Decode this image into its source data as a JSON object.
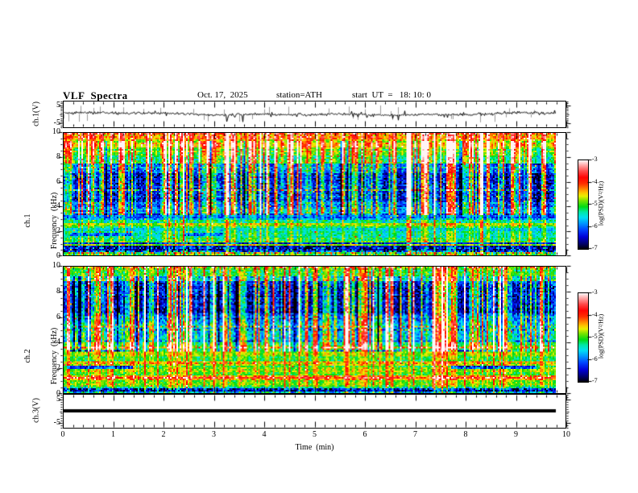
{
  "figure": {
    "title": "VLF  Spectra",
    "date": "Oct. 17,  2025",
    "station": "station=ATH",
    "start_ut": "start  UT  =   18: 10: 0"
  },
  "axes": {
    "x_label": "Time  (min)",
    "x_tick_labels": [
      "0",
      "1",
      "2",
      "3",
      "4",
      "5",
      "6",
      "7",
      "8",
      "9",
      "10"
    ],
    "x_range": [
      0,
      10
    ],
    "x_minor_step": 0.2,
    "freq_tick_labels": [
      "10",
      "8",
      "6",
      "4",
      "2",
      "0"
    ],
    "volt_tick_labels": [
      "5",
      "-5"
    ],
    "grid": false
  },
  "labels": {
    "ch1_volt": "ch.1(V)",
    "ch1_spec_line1": "ch.1",
    "ch1_spec_line2": "Frequency  (kHz)",
    "ch2_spec_line1": "ch.2",
    "ch2_spec_line2": "Frequency  (kHz)",
    "ch3_volt": "ch.3(V)"
  },
  "colorbar": {
    "tick_labels": [
      "-3",
      "-4",
      "-5",
      "-6",
      "-7"
    ],
    "label": "log(PSD)(V²/Hz)",
    "range": [
      -7,
      -3
    ]
  },
  "colormap": [
    [
      0.0,
      "#000000"
    ],
    [
      0.06,
      "#000066"
    ],
    [
      0.14,
      "#0000d8"
    ],
    [
      0.22,
      "#0044ff"
    ],
    [
      0.3,
      "#00a0ff"
    ],
    [
      0.36,
      "#00e0f4"
    ],
    [
      0.42,
      "#00e8a8"
    ],
    [
      0.48,
      "#00dc14"
    ],
    [
      0.55,
      "#7ce400"
    ],
    [
      0.6,
      "#e8f000"
    ],
    [
      0.64,
      "#ffc400"
    ],
    [
      0.69,
      "#ff7800"
    ],
    [
      0.74,
      "#ff3000"
    ],
    [
      0.81,
      "#ff0404"
    ],
    [
      0.88,
      "#ff4848"
    ],
    [
      0.94,
      "#ff9c9c"
    ],
    [
      1.0,
      "#fff4f4"
    ]
  ],
  "chart_data": [
    {
      "type": "line",
      "name": "ch.1 voltage waveform",
      "panel": "wave1",
      "ylabel": "ch.1(V)",
      "ylim": [
        -7.5,
        7.5
      ],
      "yticks": [
        5,
        -5
      ],
      "x_start": 0,
      "x_end": 9.8,
      "xlabel": "Time (min)",
      "seed": 41,
      "baseline": 0.2,
      "noise": 0.55,
      "spike_rate": 0.05,
      "spike_amp": 4.2,
      "gray_spike_count": 38,
      "color": "#000000",
      "gray_color": "#9a9a9a"
    },
    {
      "type": "heatmap",
      "name": "ch.1 spectrogram",
      "panel": "spec1",
      "ylabel": "ch.1 Frequency (kHz)",
      "ylim": [
        0,
        10
      ],
      "zlim": [
        -7,
        -3
      ],
      "x_start": 0,
      "x_end": 9.8,
      "seed": 12,
      "bands": [
        [
          9.88,
          10.0,
          -4.05,
          0.45
        ],
        [
          9.55,
          9.88,
          -4.35,
          0.3
        ],
        [
          8.85,
          9.55,
          -4.6,
          0.25
        ],
        [
          8.15,
          8.85,
          -4.95,
          0.3
        ],
        [
          7.45,
          8.15,
          -5.35,
          0.4
        ],
        [
          6.75,
          7.45,
          -5.95,
          0.5
        ],
        [
          4.3,
          6.75,
          -6.35,
          0.5
        ],
        [
          3.85,
          4.3,
          -5.95,
          0.45
        ],
        [
          3.45,
          3.85,
          -5.65,
          0.4
        ],
        [
          3.22,
          3.45,
          -6.25,
          0.4
        ],
        [
          2.88,
          3.22,
          -6.0,
          0.45
        ],
        [
          2.58,
          2.88,
          -5.35,
          0.35
        ],
        [
          2.4,
          2.58,
          -4.8,
          0.3
        ],
        [
          1.5,
          2.4,
          -5.45,
          0.3
        ],
        [
          0.85,
          1.5,
          -5.15,
          0.3
        ],
        [
          0.32,
          0.85,
          -6.45,
          0.85
        ],
        [
          0.0,
          0.32,
          -5.35,
          0.45
        ]
      ],
      "hlines": [
        [
          5.32,
          0.07,
          -5.7,
          1.1
        ],
        [
          4.62,
          0.05,
          -6.55,
          0.5
        ],
        [
          3.3,
          0.05,
          -6.6,
          0.4
        ],
        [
          2.78,
          0.04,
          -6.55,
          0.4
        ],
        [
          2.66,
          0.03,
          -6.3,
          0.4
        ],
        [
          1.35,
          0.03,
          -5.9,
          0.4
        ],
        [
          1.02,
          0.04,
          -6.5,
          0.5
        ],
        [
          0.7,
          0.07,
          -6.9,
          0.5
        ],
        [
          0.48,
          0.06,
          -6.8,
          0.5
        ],
        [
          0.15,
          0.06,
          -4.9,
          0.9
        ]
      ],
      "patches": [
        [
          0.1,
          1.35,
          1.62,
          1.78,
          -6.2,
          0.4
        ],
        [
          2.4,
          3.15,
          1.62,
          1.78,
          -6.2,
          0.4
        ],
        [
          0.15,
          1.4,
          3.52,
          3.68,
          -6.1,
          0.4
        ]
      ],
      "streaks": {
        "count": 240,
        "dark": 22,
        "min_strength": 0.3,
        "max_extra": 2.1
      }
    },
    {
      "type": "heatmap",
      "name": "ch.2 spectrogram",
      "panel": "spec2",
      "ylabel": "ch.2 Frequency (kHz)",
      "ylim": [
        0,
        10
      ],
      "zlim": [
        -7,
        -3
      ],
      "x_start": 0,
      "x_end": 9.8,
      "seed": 13,
      "bands": [
        [
          9.88,
          10.0,
          -4.75,
          0.6
        ],
        [
          9.3,
          9.88,
          -5.0,
          0.4
        ],
        [
          8.8,
          9.3,
          -5.5,
          0.45
        ],
        [
          6.3,
          8.8,
          -6.45,
          0.5
        ],
        [
          5.65,
          6.3,
          -6.1,
          0.5
        ],
        [
          5.38,
          5.65,
          -5.7,
          0.4
        ],
        [
          4.2,
          5.38,
          -5.55,
          0.45
        ],
        [
          3.68,
          4.2,
          -5.15,
          0.3
        ],
        [
          2.5,
          3.68,
          -5.05,
          0.3
        ],
        [
          2.18,
          2.5,
          -4.7,
          0.35
        ],
        [
          1.42,
          2.18,
          -5.05,
          0.3
        ],
        [
          0.95,
          1.42,
          -4.6,
          0.45
        ],
        [
          0.55,
          0.95,
          -5.1,
          0.3
        ],
        [
          0.38,
          0.55,
          -5.65,
          0.5
        ],
        [
          0.1,
          0.38,
          -6.55,
          0.8
        ],
        [
          0.0,
          0.1,
          -5.7,
          0.6
        ]
      ],
      "hlines": [
        [
          5.28,
          0.06,
          -5.6,
          1.2
        ],
        [
          5.05,
          0.05,
          -5.8,
          1.1
        ],
        [
          4.15,
          0.04,
          -6.2,
          0.6
        ],
        [
          3.55,
          0.06,
          -4.35,
          0.8
        ],
        [
          3.3,
          0.03,
          -6.0,
          0.6
        ],
        [
          2.32,
          0.04,
          -4.5,
          0.5
        ],
        [
          2.03,
          0.04,
          -5.9,
          0.9
        ],
        [
          1.15,
          0.06,
          -4.2,
          0.5
        ],
        [
          0.22,
          0.05,
          -6.85,
          0.5
        ]
      ],
      "patches": [
        [
          0.05,
          1.35,
          1.92,
          2.12,
          -6.35,
          0.5
        ],
        [
          7.7,
          9.4,
          1.92,
          2.12,
          -6.3,
          0.5
        ],
        [
          0.05,
          1.35,
          3.28,
          3.45,
          -6.2,
          0.5
        ],
        [
          7.6,
          8.9,
          3.3,
          3.45,
          -6.2,
          0.5
        ],
        [
          5.1,
          6.6,
          3.3,
          3.42,
          -6.1,
          0.5
        ]
      ],
      "streaks": {
        "count": 240,
        "dark": 22,
        "min_strength": 0.3,
        "max_extra": 2.1
      }
    },
    {
      "type": "line",
      "name": "ch.3 voltage waveform",
      "panel": "wave3",
      "ylabel": "ch.3(V)",
      "ylim": [
        -7.5,
        7.5
      ],
      "yticks": [
        5,
        -5
      ],
      "x_start": 0,
      "x_end": 9.8,
      "xlabel": "Time (min)",
      "constant_value": 0.3,
      "thickness": 4,
      "color": "#000000"
    }
  ]
}
